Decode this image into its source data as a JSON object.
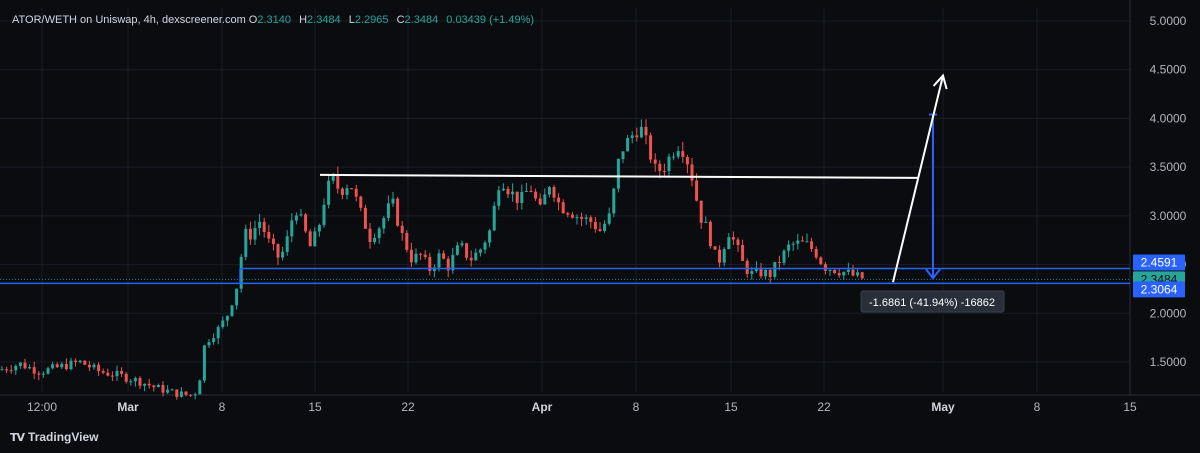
{
  "legend": {
    "symbol": "ATOR/WETH on Uniswap, 4h, dexscreener.com",
    "open_key": "O",
    "open": "2.3140",
    "high_key": "H",
    "high": "2.3484",
    "low_key": "L",
    "low": "2.2965",
    "close_key": "C",
    "close": "2.3484",
    "change": "0.03439 (+1.49%)"
  },
  "brand": {
    "name": "TradingView",
    "logo_text": "TV"
  },
  "colors": {
    "background": "#0b0c10",
    "grid": "#1a1d26",
    "up": "#26a69a",
    "down": "#ef5350",
    "blue": "#2962ff",
    "white": "#ffffff",
    "axis_text": "#b2b5be"
  },
  "chart_data": {
    "type": "candlestick",
    "y_axis": {
      "position": "right",
      "ylim": [
        1.1,
        5.1
      ],
      "tick_labels": [
        "5.0000",
        "4.5000",
        "4.0000",
        "3.5000",
        "3.0000",
        "2.5000",
        "2.0000",
        "1.5000"
      ],
      "tick_values": [
        5.0,
        4.5,
        4.0,
        3.5,
        3.0,
        2.5,
        2.0,
        1.5
      ]
    },
    "x_axis": {
      "tick_labels": [
        {
          "text": "12:00",
          "bold": false
        },
        {
          "text": "Mar",
          "bold": true
        },
        {
          "text": "8",
          "bold": false
        },
        {
          "text": "15",
          "bold": false
        },
        {
          "text": "22",
          "bold": false
        },
        {
          "text": "Apr",
          "bold": true
        },
        {
          "text": "8",
          "bold": false
        },
        {
          "text": "15",
          "bold": false
        },
        {
          "text": "22",
          "bold": false
        },
        {
          "text": "May",
          "bold": true
        },
        {
          "text": "8",
          "bold": false
        },
        {
          "text": "15",
          "bold": false
        }
      ]
    },
    "price_keypoints": [
      [
        0,
        1.42
      ],
      [
        20,
        1.48
      ],
      [
        40,
        1.4
      ],
      [
        60,
        1.45
      ],
      [
        80,
        1.5
      ],
      [
        100,
        1.4
      ],
      [
        120,
        1.36
      ],
      [
        140,
        1.3
      ],
      [
        155,
        1.24
      ],
      [
        168,
        1.2
      ],
      [
        180,
        1.17
      ],
      [
        192,
        1.16
      ],
      [
        198,
        1.22
      ],
      [
        205,
        1.7
      ],
      [
        212,
        1.78
      ],
      [
        220,
        1.85
      ],
      [
        228,
        2.0
      ],
      [
        238,
        2.32
      ],
      [
        244,
        2.82
      ],
      [
        250,
        2.8
      ],
      [
        260,
        2.95
      ],
      [
        270,
        2.7
      ],
      [
        280,
        2.55
      ],
      [
        287,
        2.75
      ],
      [
        295,
        3.1
      ],
      [
        303,
        2.9
      ],
      [
        310,
        2.68
      ],
      [
        318,
        2.85
      ],
      [
        325,
        3.2
      ],
      [
        332,
        3.4
      ],
      [
        340,
        3.25
      ],
      [
        350,
        3.35
      ],
      [
        360,
        3.05
      ],
      [
        370,
        2.78
      ],
      [
        380,
        2.9
      ],
      [
        392,
        3.15
      ],
      [
        402,
        2.8
      ],
      [
        412,
        2.55
      ],
      [
        420,
        2.6
      ],
      [
        430,
        2.45
      ],
      [
        440,
        2.6
      ],
      [
        448,
        2.48
      ],
      [
        460,
        2.7
      ],
      [
        470,
        2.55
      ],
      [
        480,
        2.65
      ],
      [
        490,
        2.85
      ],
      [
        500,
        3.4
      ],
      [
        510,
        3.25
      ],
      [
        520,
        3.15
      ],
      [
        530,
        3.3
      ],
      [
        540,
        3.05
      ],
      [
        550,
        3.35
      ],
      [
        560,
        3.1
      ],
      [
        570,
        3.05
      ],
      [
        580,
        2.98
      ],
      [
        590,
        2.95
      ],
      [
        600,
        2.85
      ],
      [
        610,
        3.0
      ],
      [
        620,
        3.65
      ],
      [
        630,
        3.8
      ],
      [
        640,
        3.92
      ],
      [
        648,
        3.7
      ],
      [
        656,
        3.45
      ],
      [
        664,
        3.5
      ],
      [
        672,
        3.65
      ],
      [
        680,
        3.75
      ],
      [
        690,
        3.5
      ],
      [
        700,
        3.0
      ],
      [
        708,
        2.85
      ],
      [
        714,
        2.6
      ],
      [
        720,
        2.55
      ],
      [
        728,
        2.85
      ],
      [
        736,
        2.7
      ],
      [
        744,
        2.48
      ],
      [
        752,
        2.4
      ],
      [
        760,
        2.42
      ],
      [
        770,
        2.4
      ],
      [
        780,
        2.55
      ],
      [
        790,
        2.7
      ],
      [
        800,
        2.72
      ],
      [
        808,
        2.7
      ],
      [
        816,
        2.62
      ],
      [
        824,
        2.48
      ],
      [
        835,
        2.45
      ],
      [
        845,
        2.42
      ],
      [
        855,
        2.38
      ],
      [
        866,
        2.35
      ]
    ],
    "drawings": {
      "resistance_line": {
        "x1": 320,
        "x2": 918,
        "y1": 3.42,
        "y2": 3.39,
        "color": "white"
      },
      "support_upper": {
        "x1": 240,
        "x2": 1130,
        "y": 2.4591,
        "color": "blue"
      },
      "support_lower": {
        "x1": 0,
        "x2": 1130,
        "y": 2.3064,
        "color": "blue"
      },
      "current_price_dotted": {
        "y": 2.3484
      },
      "measure_arrow": {
        "x": 933,
        "y_top": 4.04,
        "y_bottom": 2.36,
        "color": "blue"
      },
      "projection_arrow": {
        "x1": 893,
        "y1": 2.32,
        "x2": 943,
        "y2": 4.44,
        "color": "white"
      }
    },
    "measure_label": "-1.6861 (-41.94%) -16862",
    "price_badges": [
      {
        "value": "2.4591",
        "y": 2.4591,
        "bg": "#2962ff",
        "fg": "#ffffff"
      },
      {
        "value": "2.3484",
        "y": 2.3484,
        "bg": "#26a69a",
        "fg": "#0b0c10"
      },
      {
        "value": "2.3064",
        "y": 2.3064,
        "bg": "#2962ff",
        "fg": "#ffffff"
      }
    ]
  }
}
